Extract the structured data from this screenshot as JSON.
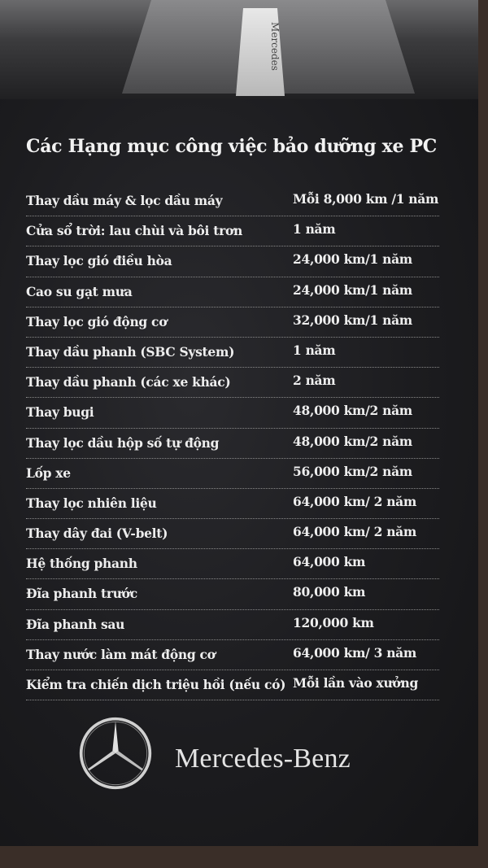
{
  "photo": {
    "badge_text": "Mercedes"
  },
  "title": "Các Hạng mục công việc bảo dưỡng xe PC",
  "items": [
    {
      "label": "Thay dầu máy & lọc dầu máy",
      "interval": "Mỗi 8,000 km /1 năm"
    },
    {
      "label": "Cửa sổ trời: lau chùi và bôi trơn",
      "interval": "1 năm"
    },
    {
      "label": "Thay lọc gió điều hòa",
      "interval": "24,000 km/1 năm"
    },
    {
      "label": "Cao su gạt mưa",
      "interval": "24,000 km/1 năm"
    },
    {
      "label": "Thay lọc gió động cơ",
      "interval": "32,000 km/1 năm"
    },
    {
      "label": "Thay dầu phanh (SBC System)",
      "interval": "1 năm"
    },
    {
      "label": "Thay dầu phanh (các xe khác)",
      "interval": "2 năm"
    },
    {
      "label": "Thay bugi",
      "interval": "48,000 km/2 năm"
    },
    {
      "label": "Thay lọc dầu hộp số tự động",
      "interval": "48,000 km/2 năm"
    },
    {
      "label": "Lốp xe",
      "interval": "56,000 km/2 năm"
    },
    {
      "label": "Thay lọc nhiên liệu",
      "interval": "64,000 km/ 2 năm"
    },
    {
      "label": "Thay dây đai (V-belt)",
      "interval": "64,000 km/ 2 năm"
    },
    {
      "label": "Hệ thống phanh",
      "interval": "64,000 km"
    },
    {
      "label": "Đĩa phanh trước",
      "interval": "80,000 km"
    },
    {
      "label": "Đĩa phanh sau",
      "interval": "120,000 km"
    },
    {
      "label": "Thay nước làm mát động cơ",
      "interval": "64,000 km/ 3 năm"
    },
    {
      "label": "Kiểm tra chiến dịch triệu hồi (nếu có)",
      "interval": "Mỗi lần vào xưởng"
    }
  ],
  "brand": {
    "name": "Mercedes-Benz",
    "logo_icon": "three-pointed-star-icon"
  },
  "colors": {
    "background": "#1c1c1f",
    "text": "#eeeeee"
  }
}
